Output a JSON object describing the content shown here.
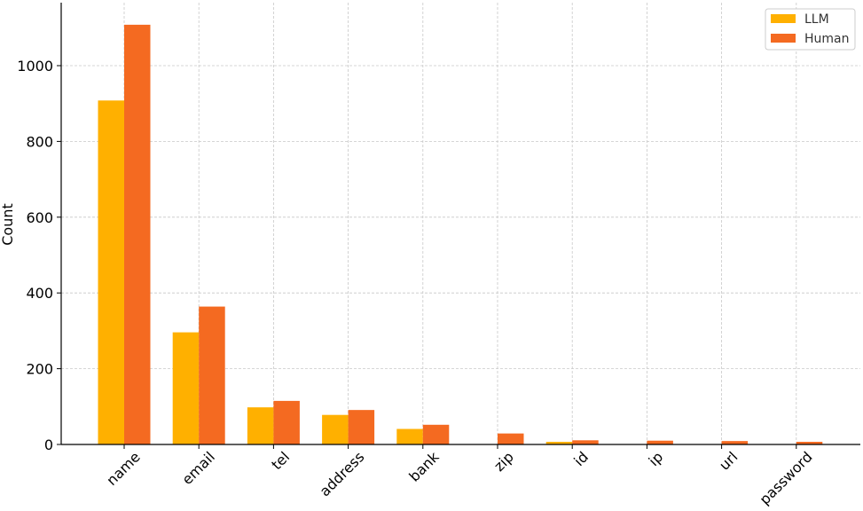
{
  "chart_data": {
    "type": "bar",
    "title": "",
    "xlabel": "",
    "ylabel": "Count",
    "categories": [
      "name",
      "email",
      "tel",
      "address",
      "bank",
      "zip",
      "id",
      "ip",
      "url",
      "password"
    ],
    "series": [
      {
        "name": "LLM",
        "color": "#FFB000",
        "values": [
          908,
          296,
          98,
          78,
          41,
          0,
          7,
          1,
          1,
          1
        ]
      },
      {
        "name": "Human",
        "color": "#F46A21",
        "values": [
          1108,
          364,
          115,
          91,
          52,
          29,
          11,
          10,
          9,
          7
        ]
      }
    ],
    "yticks": [
      0,
      200,
      400,
      600,
      800,
      1000
    ],
    "ylim": [
      0,
      1150
    ],
    "grid": true,
    "legend_position": "top-right"
  }
}
